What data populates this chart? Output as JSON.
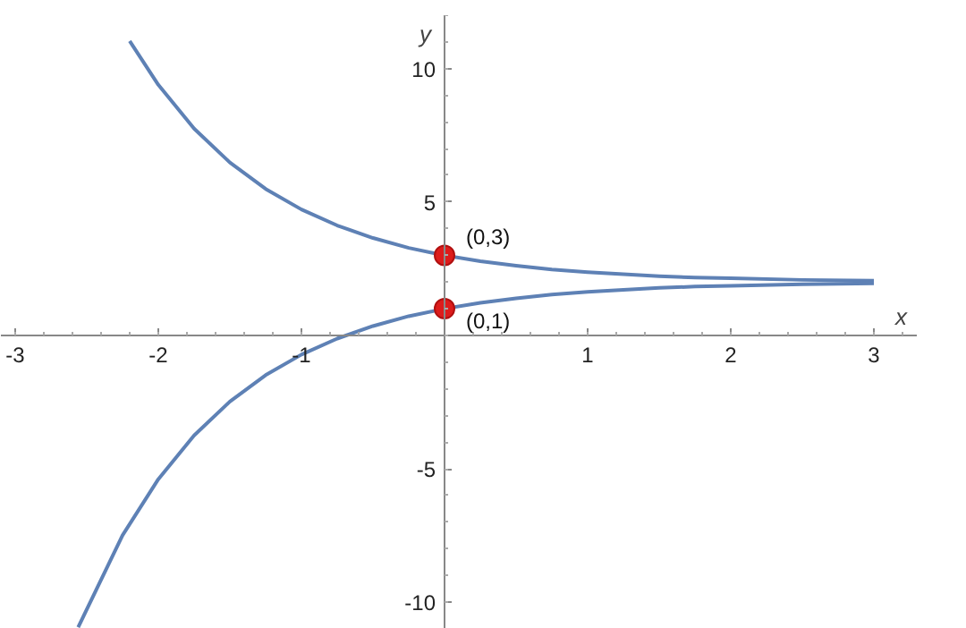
{
  "chart_data": {
    "type": "line",
    "xlabel": "x",
    "ylabel": "y",
    "xlim": [
      -3.1,
      3.3
    ],
    "ylim": [
      -11,
      12
    ],
    "xticks": [
      -3,
      -2,
      -1,
      1,
      2,
      3
    ],
    "yticks": [
      -10,
      -5,
      5,
      10
    ],
    "grid": false,
    "marker": "none",
    "line_style": "solid",
    "series": [
      {
        "color": "#5e81b5",
        "x": [
          -2.2,
          -2,
          -1.75,
          -1.5,
          -1.25,
          -1,
          -0.75,
          -0.5,
          -0.25,
          0,
          0.25,
          0.5,
          0.75,
          1,
          1.25,
          1.5,
          1.75,
          2,
          2.5,
          3
        ],
        "values": [
          11.03,
          9.39,
          7.75,
          6.48,
          5.49,
          4.72,
          4.12,
          3.65,
          3.28,
          3,
          2.78,
          2.61,
          2.47,
          2.37,
          2.29,
          2.22,
          2.17,
          2.14,
          2.08,
          2.05
        ]
      },
      {
        "color": "#5e81b5",
        "x": [
          -2.56,
          -2.25,
          -2,
          -1.75,
          -1.5,
          -1.25,
          -1,
          -0.75,
          -0.5,
          -0.25,
          0,
          0.25,
          0.5,
          0.75,
          1,
          1.25,
          1.5,
          1.75,
          2,
          2.5,
          3
        ],
        "values": [
          -10.94,
          -7.49,
          -5.39,
          -3.75,
          -2.48,
          -1.49,
          -0.72,
          -0.12,
          0.35,
          0.72,
          1,
          1.22,
          1.39,
          1.53,
          1.63,
          1.71,
          1.78,
          1.83,
          1.86,
          1.92,
          1.95
        ]
      },
      {
        "type": "scatter",
        "marker": "circle",
        "color": "#dd1c1c",
        "x": [
          0,
          0
        ],
        "values": [
          3,
          1
        ]
      }
    ],
    "annotations": [
      {
        "text": "(0,3)",
        "x": 0,
        "y": 3
      },
      {
        "text": "(0,1)",
        "x": 0,
        "y": 1
      }
    ]
  }
}
